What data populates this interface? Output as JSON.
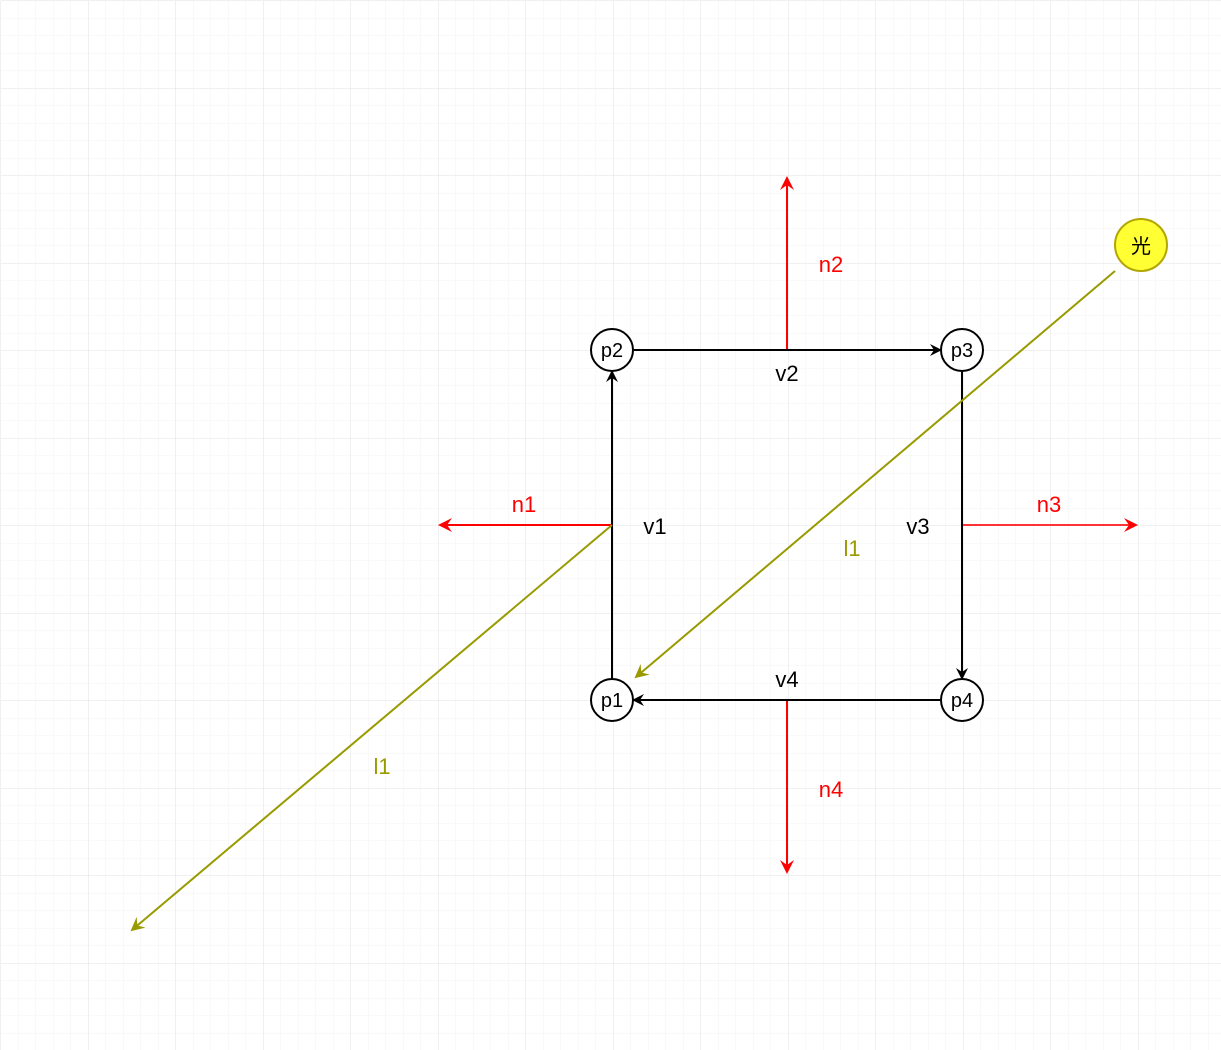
{
  "diagram": {
    "colors": {
      "vertex_edge": "#000000",
      "normal": "#ff0000",
      "light": "#999900",
      "light_source_fill": "#ffff33",
      "light_source_stroke": "#b3a600",
      "grid_minor": "#f2f2f2",
      "grid_major": "#e0e0e0"
    },
    "points": {
      "p1": "p1",
      "p2": "p2",
      "p3": "p3",
      "p4": "p4"
    },
    "edges": {
      "v1": "v1",
      "v2": "v2",
      "v3": "v3",
      "v4": "v4"
    },
    "normals": {
      "n1": "n1",
      "n2": "n2",
      "n3": "n3",
      "n4": "n4"
    },
    "light": {
      "source_label": "光",
      "ray_label_inner": "l1",
      "ray_label_outer": "l1"
    }
  }
}
